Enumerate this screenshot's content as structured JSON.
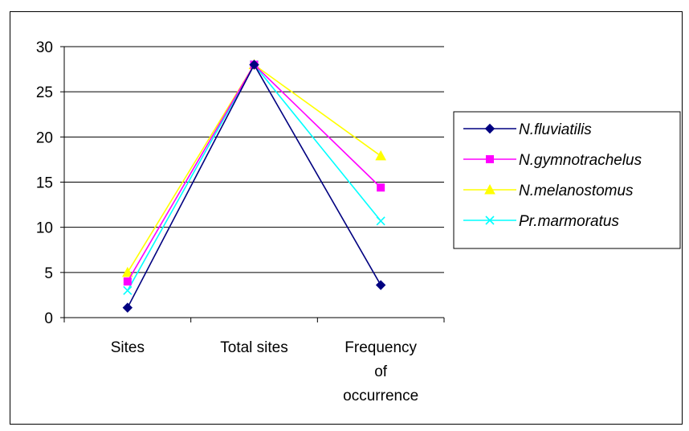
{
  "chart_data": {
    "type": "line",
    "categories": [
      [
        "Sites"
      ],
      [
        "Total sites"
      ],
      [
        "Frequency",
        "of",
        "occurrence"
      ]
    ],
    "ylim": [
      0,
      30
    ],
    "yticks": [
      0,
      5,
      10,
      15,
      20,
      25,
      30
    ],
    "grid": true,
    "legend_position": "right",
    "series": [
      {
        "name": "N.fluviatilis",
        "color": "#000080",
        "marker": "diamond",
        "values": [
          1.1,
          28,
          3.6
        ]
      },
      {
        "name": "N.gymnotrachelus",
        "color": "#FF00FF",
        "marker": "square",
        "values": [
          4,
          28,
          14.4
        ]
      },
      {
        "name": "N.melanostomus",
        "color": "#FFFF00",
        "marker": "triangle",
        "values": [
          5,
          28,
          17.9
        ]
      },
      {
        "name": "Pr.marmoratus",
        "color": "#00FFFF",
        "marker": "x",
        "values": [
          3,
          28,
          10.7
        ]
      }
    ]
  }
}
